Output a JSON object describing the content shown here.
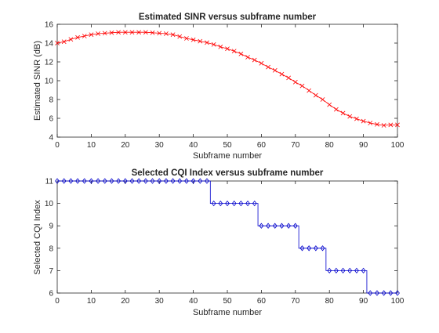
{
  "chart_data": [
    {
      "type": "line",
      "title": "Estimated SINR versus subframe number",
      "xlabel": "Subframe number",
      "ylabel": "Estimated SINR (dB)",
      "xlim": [
        0,
        100
      ],
      "ylim": [
        4,
        16
      ],
      "xticks": [
        "0",
        "10",
        "20",
        "30",
        "40",
        "50",
        "60",
        "70",
        "80",
        "90",
        "100"
      ],
      "yticks": [
        "4",
        "6",
        "8",
        "10",
        "12",
        "14",
        "16"
      ],
      "grid": false,
      "legend": "none",
      "marker": "x",
      "color": "#ff0000",
      "series": [
        {
          "x": [
            0,
            2,
            4,
            6,
            8,
            10,
            12,
            14,
            16,
            18,
            20,
            22,
            24,
            26,
            28,
            30,
            32,
            34,
            36,
            38,
            40,
            42,
            44,
            46,
            48,
            50,
            52,
            54,
            56,
            58,
            60,
            62,
            64,
            66,
            68,
            70,
            72,
            74,
            76,
            78,
            80,
            82,
            84,
            86,
            88,
            90,
            92,
            94,
            96,
            98,
            100
          ],
          "values": [
            14.0,
            14.15,
            14.4,
            14.6,
            14.75,
            14.9,
            15.0,
            15.05,
            15.1,
            15.15,
            15.15,
            15.15,
            15.15,
            15.15,
            15.1,
            15.05,
            15.0,
            14.9,
            14.7,
            14.5,
            14.35,
            14.2,
            14.05,
            13.85,
            13.6,
            13.4,
            13.15,
            12.85,
            12.5,
            12.2,
            11.85,
            11.45,
            11.1,
            10.7,
            10.3,
            9.85,
            9.45,
            8.95,
            8.45,
            8.0,
            7.45,
            6.95,
            6.55,
            6.2,
            5.95,
            5.7,
            5.5,
            5.35,
            5.25,
            5.3,
            5.3
          ]
        }
      ]
    },
    {
      "type": "line",
      "title": "Selected CQI Index versus subframe number",
      "xlabel": "Subframe number",
      "ylabel": "Selected CQI Index",
      "xlim": [
        0,
        100
      ],
      "ylim": [
        6,
        11
      ],
      "xticks": [
        "0",
        "10",
        "20",
        "30",
        "40",
        "50",
        "60",
        "70",
        "80",
        "90",
        "100"
      ],
      "yticks": [
        "6",
        "7",
        "8",
        "9",
        "10",
        "11"
      ],
      "grid": false,
      "legend": "none",
      "marker": "diamond",
      "color": "#0000cc",
      "series": [
        {
          "x": [
            0,
            2,
            4,
            6,
            8,
            10,
            12,
            14,
            16,
            18,
            20,
            22,
            24,
            26,
            28,
            30,
            32,
            34,
            36,
            38,
            40,
            42,
            44,
            46,
            48,
            50,
            52,
            54,
            56,
            58,
            60,
            62,
            64,
            66,
            68,
            70,
            72,
            74,
            76,
            78,
            80,
            82,
            84,
            86,
            88,
            90,
            92,
            94,
            96,
            98,
            100
          ],
          "values": [
            11,
            11,
            11,
            11,
            11,
            11,
            11,
            11,
            11,
            11,
            11,
            11,
            11,
            11,
            11,
            11,
            11,
            11,
            11,
            11,
            11,
            11,
            11,
            10,
            10,
            10,
            10,
            10,
            10,
            10,
            9,
            9,
            9,
            9,
            9,
            9,
            8,
            8,
            8,
            8,
            7,
            7,
            7,
            7,
            7,
            7,
            6,
            6,
            6,
            6,
            6
          ]
        }
      ]
    }
  ]
}
